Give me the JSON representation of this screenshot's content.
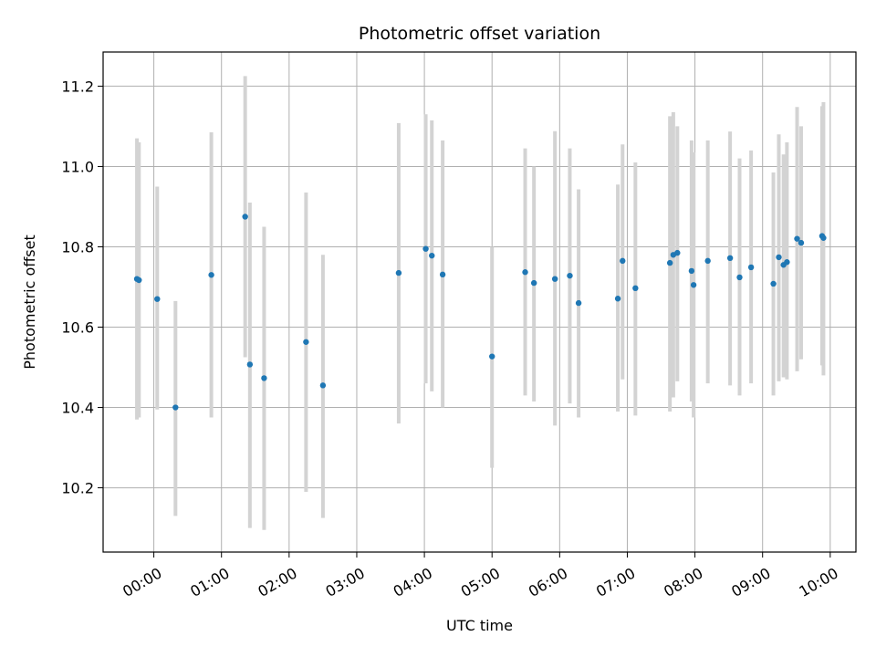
{
  "chart_data": {
    "type": "scatter",
    "title": "Photometric offset variation",
    "xlabel": "UTC time",
    "ylabel": "Photometric offset",
    "x_unit": "hours UTC",
    "xlim": [
      -0.75,
      10.38
    ],
    "ylim": [
      10.04,
      11.285
    ],
    "x_ticks": [
      0,
      1,
      2,
      3,
      4,
      5,
      6,
      7,
      8,
      9,
      10
    ],
    "x_tick_labels": [
      "00:00",
      "01:00",
      "02:00",
      "03:00",
      "04:00",
      "05:00",
      "06:00",
      "07:00",
      "08:00",
      "09:00",
      "10:00"
    ],
    "y_ticks": [
      10.2,
      10.4,
      10.6,
      10.8,
      11.0,
      11.2
    ],
    "y_tick_labels": [
      "10.2",
      "10.4",
      "10.6",
      "10.8",
      "11.0",
      "11.2"
    ],
    "grid": true,
    "marker_color": "#1f77b4",
    "errorbar_color": "#d3d3d3",
    "points": [
      {
        "x": -0.25,
        "y": 10.72,
        "lo": 10.37,
        "hi": 11.07
      },
      {
        "x": -0.22,
        "y": 10.717,
        "lo": 10.375,
        "hi": 11.06
      },
      {
        "x": 0.05,
        "y": 10.67,
        "lo": 10.395,
        "hi": 10.95
      },
      {
        "x": 0.32,
        "y": 10.4,
        "lo": 10.13,
        "hi": 10.665
      },
      {
        "x": 0.85,
        "y": 10.73,
        "lo": 10.375,
        "hi": 11.085
      },
      {
        "x": 1.35,
        "y": 10.875,
        "lo": 10.525,
        "hi": 11.225
      },
      {
        "x": 1.42,
        "y": 10.507,
        "lo": 10.1,
        "hi": 10.91
      },
      {
        "x": 1.63,
        "y": 10.473,
        "lo": 10.095,
        "hi": 10.85
      },
      {
        "x": 2.25,
        "y": 10.563,
        "lo": 10.19,
        "hi": 10.935
      },
      {
        "x": 2.5,
        "y": 10.455,
        "lo": 10.125,
        "hi": 10.78
      },
      {
        "x": 3.62,
        "y": 10.735,
        "lo": 10.36,
        "hi": 11.108
      },
      {
        "x": 4.02,
        "y": 10.795,
        "lo": 10.46,
        "hi": 11.13
      },
      {
        "x": 4.11,
        "y": 10.778,
        "lo": 10.44,
        "hi": 11.115
      },
      {
        "x": 4.27,
        "y": 10.731,
        "lo": 10.4,
        "hi": 11.065
      },
      {
        "x": 5.0,
        "y": 10.527,
        "lo": 10.25,
        "hi": 10.8
      },
      {
        "x": 5.49,
        "y": 10.737,
        "lo": 10.43,
        "hi": 11.045
      },
      {
        "x": 5.62,
        "y": 10.71,
        "lo": 10.415,
        "hi": 11.0
      },
      {
        "x": 5.93,
        "y": 10.72,
        "lo": 10.355,
        "hi": 11.088
      },
      {
        "x": 6.15,
        "y": 10.728,
        "lo": 10.41,
        "hi": 11.045
      },
      {
        "x": 6.28,
        "y": 10.66,
        "lo": 10.375,
        "hi": 10.943
      },
      {
        "x": 6.86,
        "y": 10.671,
        "lo": 10.39,
        "hi": 10.955
      },
      {
        "x": 6.93,
        "y": 10.765,
        "lo": 10.47,
        "hi": 11.055
      },
      {
        "x": 7.12,
        "y": 10.697,
        "lo": 10.38,
        "hi": 11.01
      },
      {
        "x": 7.63,
        "y": 10.76,
        "lo": 10.39,
        "hi": 11.125
      },
      {
        "x": 7.68,
        "y": 10.78,
        "lo": 10.425,
        "hi": 11.135
      },
      {
        "x": 7.74,
        "y": 10.785,
        "lo": 10.465,
        "hi": 11.1
      },
      {
        "x": 7.95,
        "y": 10.74,
        "lo": 10.415,
        "hi": 11.065
      },
      {
        "x": 7.98,
        "y": 10.705,
        "lo": 10.375,
        "hi": 11.035
      },
      {
        "x": 8.19,
        "y": 10.765,
        "lo": 10.46,
        "hi": 11.065
      },
      {
        "x": 8.52,
        "y": 10.772,
        "lo": 10.455,
        "hi": 11.087
      },
      {
        "x": 8.66,
        "y": 10.724,
        "lo": 10.43,
        "hi": 11.02
      },
      {
        "x": 8.83,
        "y": 10.749,
        "lo": 10.46,
        "hi": 11.04
      },
      {
        "x": 9.16,
        "y": 10.708,
        "lo": 10.43,
        "hi": 10.985
      },
      {
        "x": 9.24,
        "y": 10.774,
        "lo": 10.465,
        "hi": 11.08
      },
      {
        "x": 9.31,
        "y": 10.755,
        "lo": 10.475,
        "hi": 11.03
      },
      {
        "x": 9.36,
        "y": 10.762,
        "lo": 10.47,
        "hi": 11.06
      },
      {
        "x": 9.51,
        "y": 10.82,
        "lo": 10.49,
        "hi": 11.148
      },
      {
        "x": 9.57,
        "y": 10.81,
        "lo": 10.52,
        "hi": 11.1
      },
      {
        "x": 9.88,
        "y": 10.827,
        "lo": 10.505,
        "hi": 11.15
      },
      {
        "x": 9.9,
        "y": 10.822,
        "lo": 10.48,
        "hi": 11.16
      }
    ]
  }
}
